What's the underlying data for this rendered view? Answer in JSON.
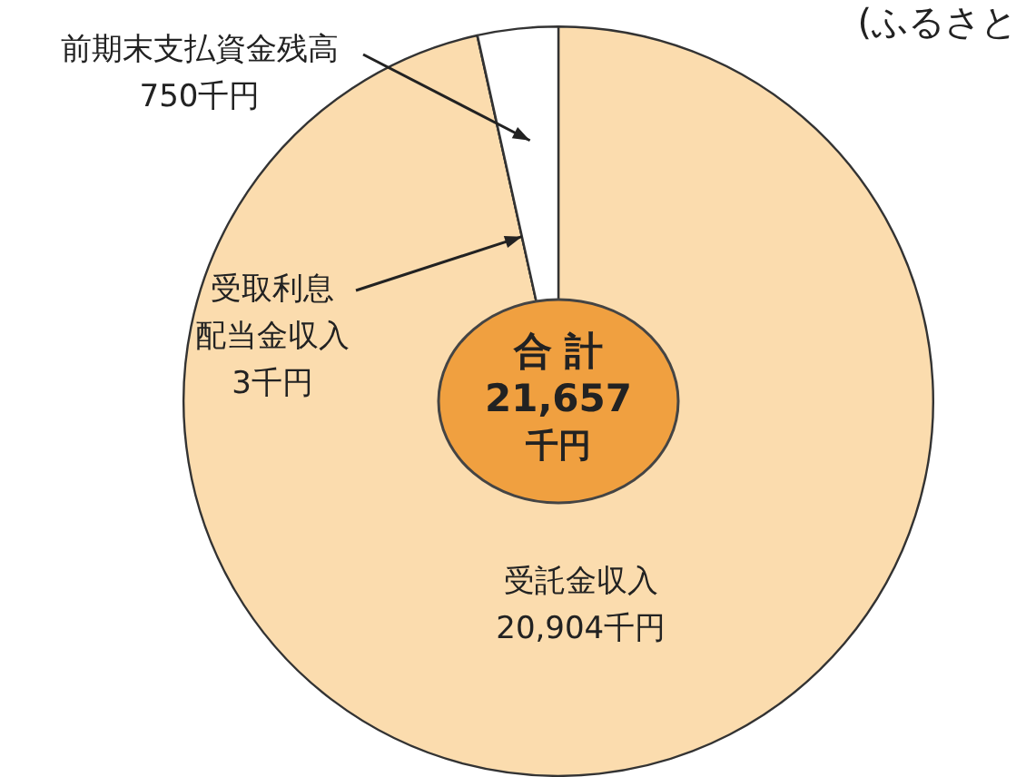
{
  "chart_data": {
    "type": "pie",
    "title": "(ふるさと",
    "categories": [
      "受託金収入",
      "受取利息配当金収入",
      "前期末支払資金残高"
    ],
    "values": [
      20904,
      3,
      750
    ],
    "value_labels": [
      "20,904千円",
      "3千円",
      "750千円"
    ],
    "colors": [
      "#fbdcae",
      "#fbdcae",
      "#ffffff"
    ],
    "annotations": [
      "合 計\n21,657\n千円"
    ],
    "legend": false
  }
}
